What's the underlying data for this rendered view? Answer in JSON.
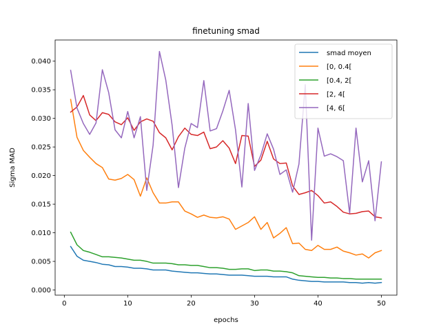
{
  "chart_data": {
    "type": "line",
    "title": "finetuning smad",
    "xlabel": "epochs",
    "ylabel": "Sigma MAD",
    "xlim": [
      -1.45,
      52.45
    ],
    "ylim": [
      -0.0009,
      0.0437
    ],
    "xticks": [
      0,
      10,
      20,
      30,
      40,
      50
    ],
    "yticks": [
      0.0,
      0.005,
      0.01,
      0.015,
      0.02,
      0.025,
      0.03,
      0.035,
      0.04
    ],
    "ytick_labels": [
      "0.000",
      "0.005",
      "0.010",
      "0.015",
      "0.020",
      "0.025",
      "0.030",
      "0.035",
      "0.040"
    ],
    "grid": false,
    "legend_position": "top-right",
    "x": [
      1,
      2,
      3,
      4,
      5,
      6,
      7,
      8,
      9,
      10,
      11,
      12,
      13,
      14,
      15,
      16,
      17,
      18,
      19,
      20,
      21,
      22,
      23,
      24,
      25,
      26,
      27,
      28,
      29,
      30,
      31,
      32,
      33,
      34,
      35,
      36,
      37,
      38,
      39,
      40,
      41,
      42,
      43,
      44,
      45,
      46,
      47,
      48,
      49,
      50
    ],
    "series": [
      {
        "name": "smad moyen",
        "color": "#1f77b4",
        "values": [
          0.0076,
          0.0059,
          0.0052,
          0.005,
          0.0048,
          0.0045,
          0.0044,
          0.0041,
          0.0041,
          0.004,
          0.0038,
          0.0038,
          0.0037,
          0.0035,
          0.0035,
          0.0035,
          0.0033,
          0.0032,
          0.0031,
          0.003,
          0.003,
          0.0029,
          0.0028,
          0.0028,
          0.0027,
          0.0026,
          0.0026,
          0.0026,
          0.0025,
          0.0024,
          0.0024,
          0.0024,
          0.0023,
          0.0023,
          0.0023,
          0.0019,
          0.0017,
          0.0016,
          0.0015,
          0.0015,
          0.0014,
          0.0014,
          0.0014,
          0.0014,
          0.0013,
          0.0013,
          0.0012,
          0.0013,
          0.0012,
          0.0013
        ]
      },
      {
        "name": "[0, 0.4[",
        "color": "#ff7f0e",
        "values": [
          0.0333,
          0.0267,
          0.0244,
          0.0232,
          0.0221,
          0.0214,
          0.0194,
          0.0192,
          0.0195,
          0.0202,
          0.0193,
          0.0164,
          0.0196,
          0.017,
          0.0152,
          0.0152,
          0.0154,
          0.0154,
          0.0138,
          0.0133,
          0.0127,
          0.0131,
          0.0127,
          0.0126,
          0.0128,
          0.0124,
          0.0106,
          0.0112,
          0.0118,
          0.0128,
          0.0106,
          0.0118,
          0.0091,
          0.0099,
          0.0109,
          0.0081,
          0.0082,
          0.0071,
          0.0069,
          0.0078,
          0.0071,
          0.0071,
          0.0075,
          0.0068,
          0.0065,
          0.0061,
          0.0063,
          0.0056,
          0.0065,
          0.0069
        ]
      },
      {
        "name": "[0.4, 2[",
        "color": "#2ca02c",
        "values": [
          0.0101,
          0.0079,
          0.0069,
          0.0066,
          0.0062,
          0.0058,
          0.0058,
          0.0057,
          0.0056,
          0.0054,
          0.0052,
          0.0052,
          0.005,
          0.0047,
          0.0047,
          0.0047,
          0.0046,
          0.0044,
          0.0044,
          0.0043,
          0.0043,
          0.0041,
          0.0039,
          0.0039,
          0.0038,
          0.0036,
          0.0036,
          0.0037,
          0.0037,
          0.0034,
          0.0035,
          0.0035,
          0.0033,
          0.0033,
          0.0032,
          0.003,
          0.0025,
          0.0024,
          0.0023,
          0.0022,
          0.0022,
          0.0021,
          0.0021,
          0.002,
          0.002,
          0.0019,
          0.0019,
          0.0019,
          0.0019,
          0.0019
        ]
      },
      {
        "name": "[2, 4[",
        "color": "#d62728",
        "values": [
          0.0311,
          0.032,
          0.034,
          0.0306,
          0.0296,
          0.031,
          0.0307,
          0.0294,
          0.0289,
          0.0301,
          0.0279,
          0.0294,
          0.0299,
          0.0295,
          0.0275,
          0.0266,
          0.0245,
          0.0268,
          0.0283,
          0.0272,
          0.027,
          0.0276,
          0.0247,
          0.025,
          0.0261,
          0.0248,
          0.0221,
          0.027,
          0.0269,
          0.0216,
          0.0227,
          0.026,
          0.0229,
          0.0221,
          0.0222,
          0.0182,
          0.0167,
          0.017,
          0.0174,
          0.0165,
          0.0152,
          0.0154,
          0.0146,
          0.0136,
          0.0133,
          0.0134,
          0.0137,
          0.0138,
          0.0128,
          0.0126
        ]
      },
      {
        "name": "[4, 6[",
        "color": "#9467bd",
        "values": [
          0.0384,
          0.0318,
          0.0291,
          0.0272,
          0.0292,
          0.0385,
          0.0345,
          0.028,
          0.0266,
          0.0312,
          0.0266,
          0.0303,
          0.0174,
          0.0253,
          0.0417,
          0.0367,
          0.0288,
          0.0179,
          0.0248,
          0.0291,
          0.0284,
          0.0366,
          0.0278,
          0.0282,
          0.0313,
          0.0349,
          0.028,
          0.018,
          0.0326,
          0.0209,
          0.0236,
          0.0273,
          0.0246,
          0.0202,
          0.021,
          0.0171,
          0.022,
          0.0359,
          0.0087,
          0.0283,
          0.0234,
          0.0238,
          0.0233,
          0.0226,
          0.0134,
          0.0283,
          0.0189,
          0.0226,
          0.0121,
          0.0224
        ]
      }
    ]
  }
}
